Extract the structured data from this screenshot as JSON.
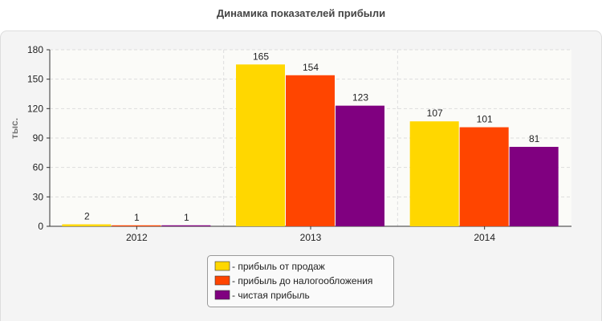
{
  "chart_data": {
    "type": "bar",
    "title": "Динамика показателей прибыли",
    "y_label": "тыс.",
    "categories": [
      "2012",
      "2013",
      "2014"
    ],
    "series": [
      {
        "name": "- прибыль от продаж",
        "color": "#ffd700",
        "values": [
          2,
          165,
          107
        ]
      },
      {
        "name": "- прибыль до налогообложения",
        "color": "#ff4500",
        "values": [
          1,
          154,
          101
        ]
      },
      {
        "name": "- чистая прибыль",
        "color": "#800080",
        "values": [
          1,
          123,
          81
        ]
      }
    ],
    "ylim": [
      0,
      180
    ],
    "yticks": [
      0,
      30,
      60,
      90,
      120,
      150,
      180
    ],
    "grid": true,
    "legend": "bottom"
  }
}
